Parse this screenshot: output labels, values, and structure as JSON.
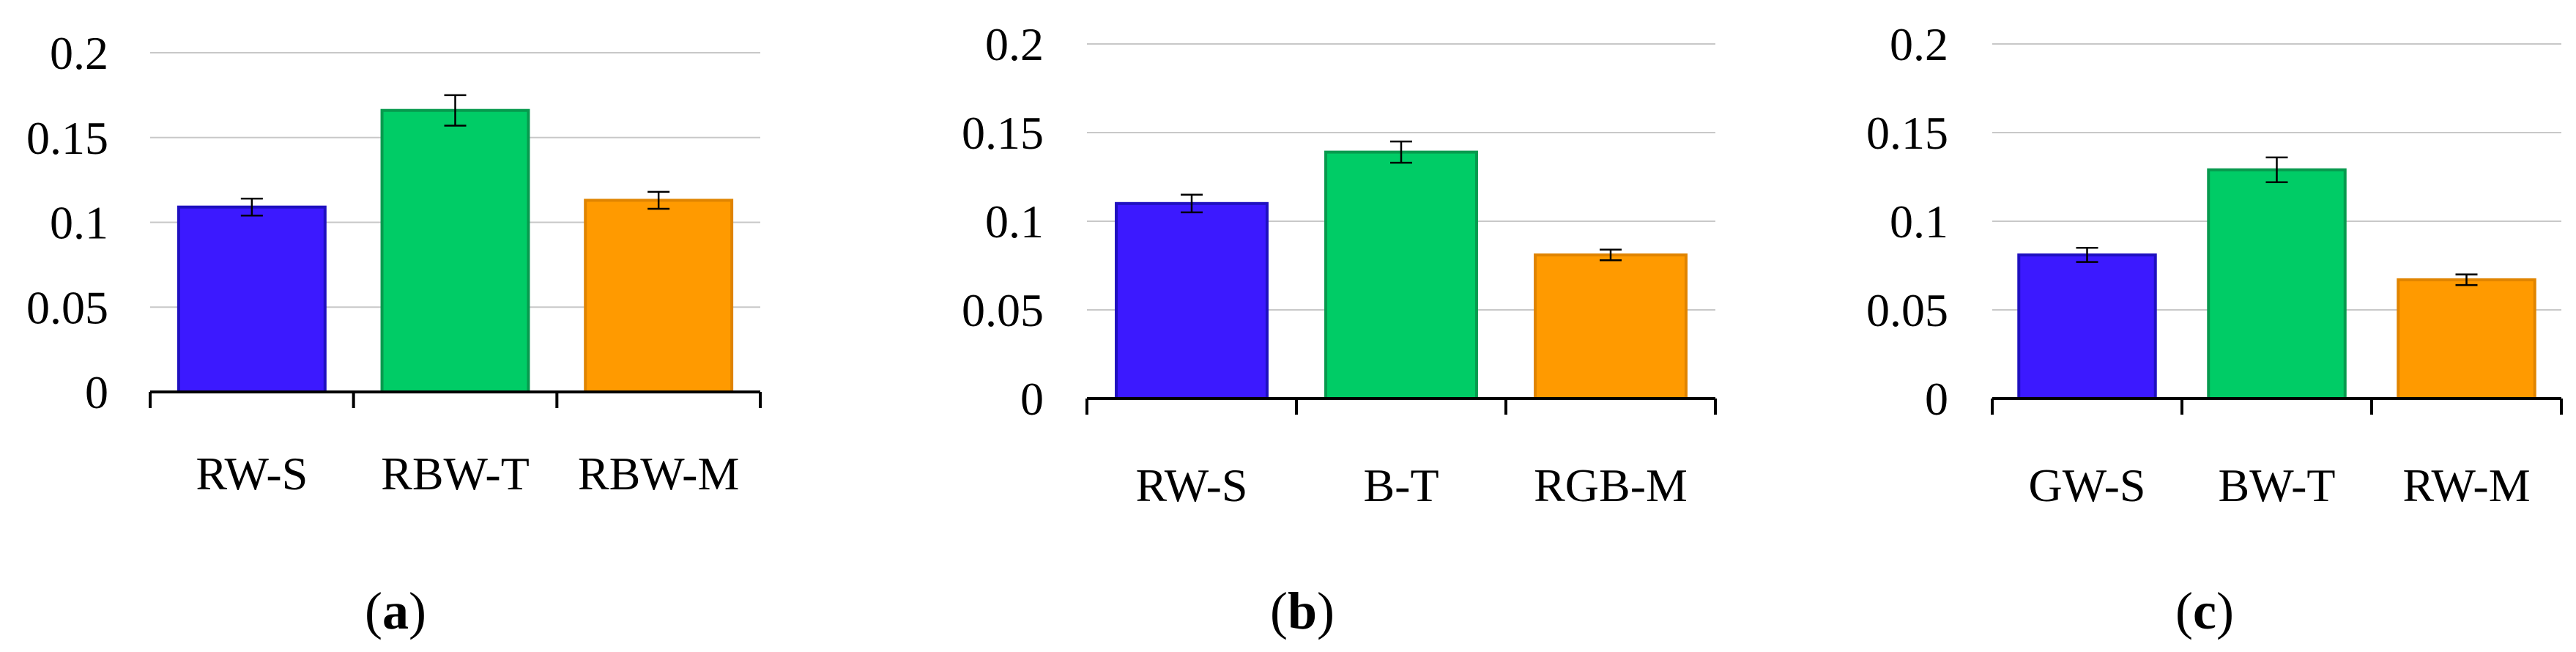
{
  "colors": {
    "bar1": "#3c19ff",
    "bar2": "#00cc66",
    "bar3": "#ff9a00",
    "bar1_edge": "#1f10c0",
    "bar2_edge": "#079a4e",
    "bar3_edge": "#e08400",
    "grid": "#c8c8c8",
    "axis": "#000000"
  },
  "chart_data": [
    {
      "type": "bar",
      "panel": "a",
      "panel_label_open": "(",
      "panel_label_letter": "a",
      "panel_label_close": ")",
      "categories": [
        "RW-S",
        "RBW-T",
        "RBW-M"
      ],
      "values": [
        0.109,
        0.166,
        0.113
      ],
      "errors": [
        0.005,
        0.009,
        0.005
      ],
      "ylim": [
        0,
        0.2
      ],
      "yticks": [
        "0",
        "0.05",
        "0.1",
        "0.15",
        "0.2"
      ],
      "grid": true
    },
    {
      "type": "bar",
      "panel": "b",
      "panel_label_open": "(",
      "panel_label_letter": "b",
      "panel_label_close": ")",
      "categories": [
        "RW-S",
        "B-T",
        "RGB-M"
      ],
      "values": [
        0.11,
        0.139,
        0.081
      ],
      "errors": [
        0.005,
        0.006,
        0.003
      ],
      "ylim": [
        0,
        0.2
      ],
      "yticks": [
        "0",
        "0.05",
        "0.1",
        "0.15",
        "0.2"
      ],
      "grid": true
    },
    {
      "type": "bar",
      "panel": "c",
      "panel_label_open": "(",
      "panel_label_letter": "c",
      "panel_label_close": ")",
      "categories": [
        "GW-S",
        "BW-T",
        "RW-M"
      ],
      "values": [
        0.081,
        0.129,
        0.067
      ],
      "errors": [
        0.004,
        0.007,
        0.003
      ],
      "ylim": [
        0,
        0.2
      ],
      "yticks": [
        "0",
        "0.05",
        "0.1",
        "0.15",
        "0.2"
      ],
      "grid": true
    }
  ]
}
